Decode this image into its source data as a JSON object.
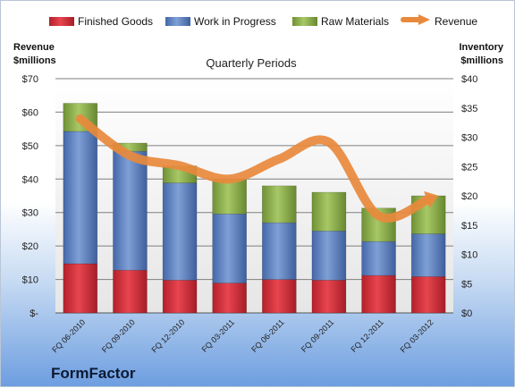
{
  "chart_data": {
    "type": "bar",
    "stacked": true,
    "title": "Quarterly Periods",
    "company": "FormFactor",
    "left_axis_label": [
      "Revenue",
      "$millions"
    ],
    "right_axis_label": [
      "Inventory",
      "$millions"
    ],
    "left_ticks": [
      "$-",
      "$10",
      "$20",
      "$30",
      "$40",
      "$50",
      "$60",
      "$70"
    ],
    "right_ticks": [
      "$0",
      "$5",
      "$10",
      "$15",
      "$20",
      "$25",
      "$30",
      "$35",
      "$40"
    ],
    "ylim_left": [
      0,
      70
    ],
    "ylim_right": [
      0,
      40
    ],
    "grid": true,
    "legend_position": "top",
    "categories": [
      "FQ 06-2010",
      "FQ 09-2010",
      "FQ 12-2010",
      "FQ 03-2011",
      "FQ 06-2011",
      "FQ 09-2011",
      "FQ 12-2011",
      "FQ 03-2012"
    ],
    "series": [
      {
        "name": "Finished Goods",
        "axis": "right",
        "color": "#d62f3a",
        "values": [
          8.4,
          7.3,
          5.6,
          5.1,
          5.7,
          5.6,
          6.4,
          6.2
        ]
      },
      {
        "name": "Work in Progress",
        "axis": "right",
        "color": "#5a7fbe",
        "values": [
          22.6,
          20.3,
          16.6,
          11.8,
          9.7,
          8.4,
          5.8,
          7.3
        ]
      },
      {
        "name": "Raw Materials",
        "axis": "right",
        "color": "#8fb24a",
        "values": [
          4.8,
          1.4,
          2.9,
          5.9,
          6.3,
          6.6,
          5.7,
          6.5
        ]
      },
      {
        "name": "Revenue",
        "axis": "left",
        "type": "line",
        "color": "#e8893c",
        "values": [
          58,
          47,
          44,
          40,
          46,
          51,
          29,
          34
        ]
      }
    ]
  }
}
